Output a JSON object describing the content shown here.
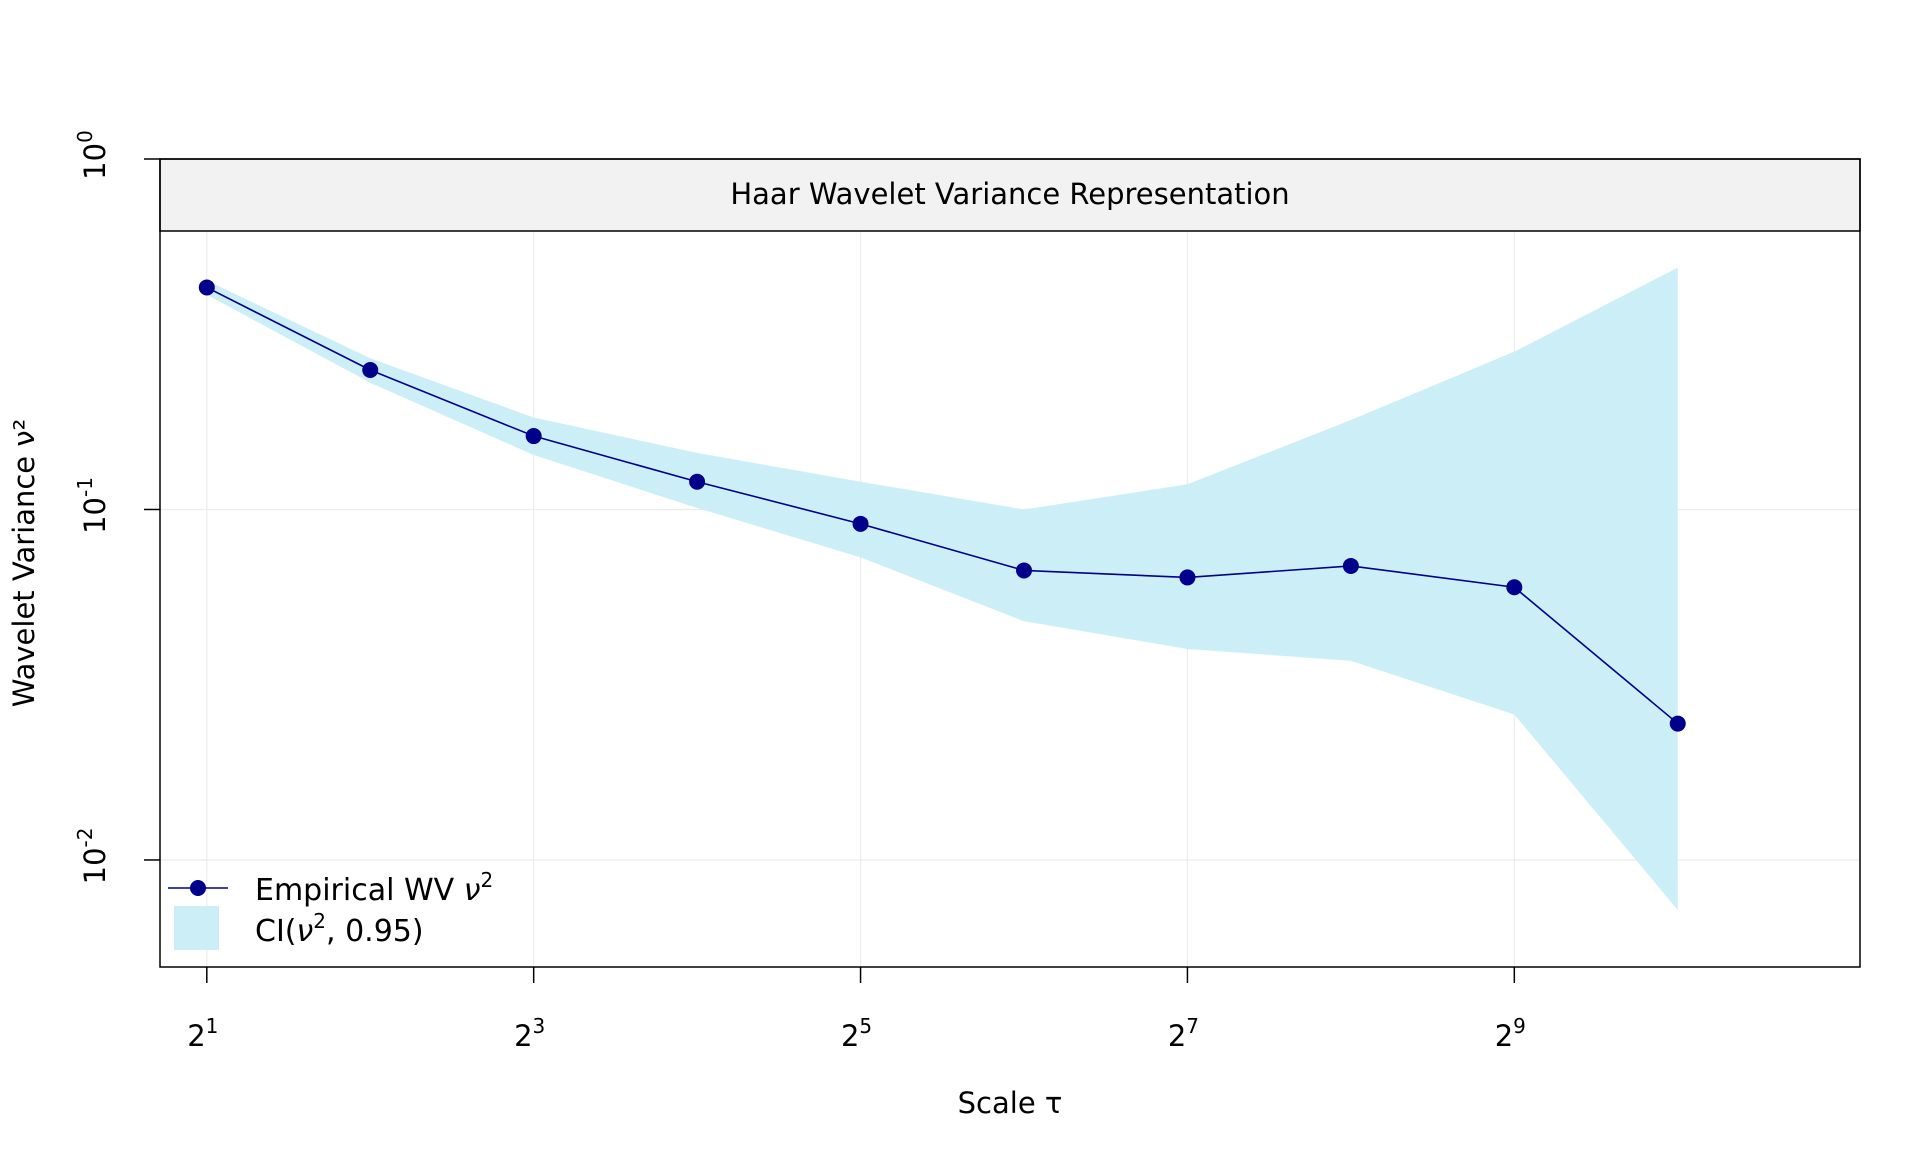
{
  "chart_data": {
    "type": "line",
    "title": "Haar Wavelet Variance Representation",
    "xlabel": "Scale τ",
    "ylabel": "Wavelet Variance ν²",
    "x_scale": "log2",
    "y_scale": "log10",
    "xlim": [
      1.64,
      2218
    ],
    "ylim": [
      0.00495,
      1.0
    ],
    "x_ticks": [
      {
        "value": 2,
        "base": "2",
        "exp": "1"
      },
      {
        "value": 8,
        "base": "2",
        "exp": "3"
      },
      {
        "value": 32,
        "base": "2",
        "exp": "5"
      },
      {
        "value": 128,
        "base": "2",
        "exp": "7"
      },
      {
        "value": 512,
        "base": "2",
        "exp": "9"
      }
    ],
    "y_ticks": [
      {
        "value": 1.0,
        "base": "10",
        "exp": "0"
      },
      {
        "value": 0.1,
        "base": "10",
        "exp": "-1"
      },
      {
        "value": 0.01,
        "base": "10",
        "exp": "-2"
      }
    ],
    "grid": true,
    "x": [
      2,
      4,
      8,
      16,
      32,
      64,
      128,
      256,
      512,
      1024
    ],
    "series": [
      {
        "name": "Empirical WV ν²",
        "values": [
          0.43,
          0.25,
          0.162,
          0.12,
          0.091,
          0.067,
          0.064,
          0.069,
          0.06,
          0.0245
        ]
      }
    ],
    "ci": {
      "name": "CI(ν², 0.95)",
      "lower": [
        0.41,
        0.23,
        0.143,
        0.101,
        0.073,
        0.048,
        0.04,
        0.037,
        0.026,
        0.0072
      ],
      "upper": [
        0.45,
        0.27,
        0.183,
        0.145,
        0.12,
        0.1,
        0.118,
        0.18,
        0.282,
        0.49
      ]
    },
    "legend": {
      "position": "bottom-left",
      "entries": [
        {
          "label_prefix": "Empirical WV ",
          "symbol": "ν",
          "sup": "2",
          "label_suffix": ""
        },
        {
          "label_prefix": "CI(",
          "symbol": "ν",
          "sup": "2",
          "label_suffix": ", 0.95)"
        }
      ]
    },
    "colors": {
      "line": "#00008b",
      "ci_fill": "#cceff7",
      "title_strip": "#f2f2f2",
      "grid": "#ececec"
    }
  }
}
